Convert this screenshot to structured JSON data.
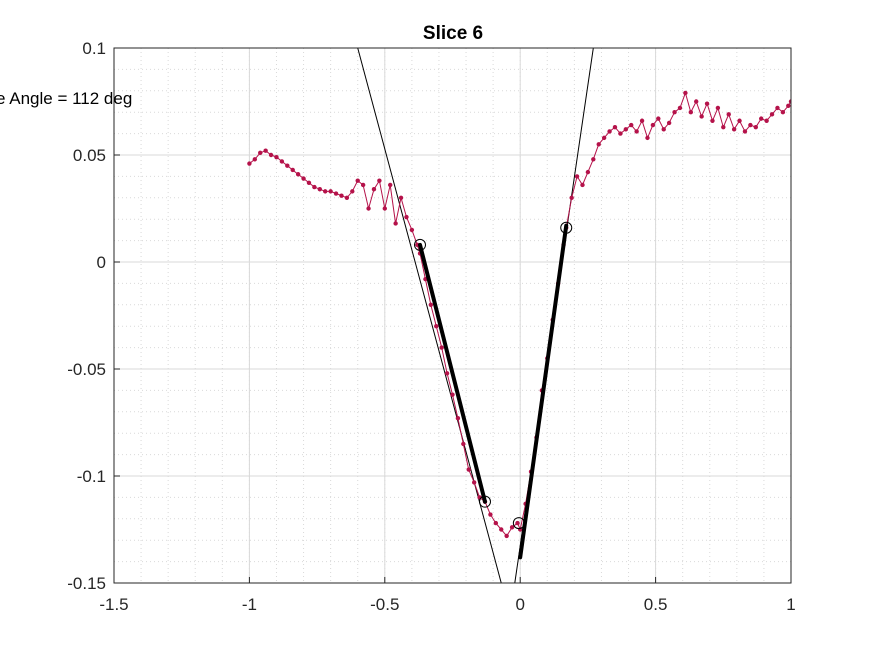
{
  "chart_data": {
    "type": "line",
    "title": "Slice 6",
    "xlabel": "",
    "ylabel": "",
    "xlim": [
      -1.5,
      1
    ],
    "ylim": [
      -0.15,
      0.1
    ],
    "xticks": [
      -1.5,
      -1,
      -0.5,
      0,
      0.5,
      1
    ],
    "xtick_labels": [
      "-1.5",
      "-1",
      "-0.5",
      "0",
      "0.5",
      "1"
    ],
    "yticks": [
      -0.15,
      -0.1,
      -0.05,
      0,
      0.05,
      0.1
    ],
    "ytick_labels": [
      "-0.15",
      "-0.1",
      "-0.05",
      "0",
      "0.05",
      "0.1"
    ],
    "grid": true,
    "minor_grid": true,
    "annotation": "e Angle = 112 deg",
    "colors": {
      "series": "#b5124a",
      "fit": "#000000",
      "grid": "#d9d9d9",
      "axes": "#262626"
    },
    "series": [
      {
        "x": [
          -1.0,
          -0.98,
          -0.96,
          -0.94,
          -0.92,
          -0.9,
          -0.88,
          -0.86,
          -0.84,
          -0.82,
          -0.8,
          -0.78,
          -0.76,
          -0.74,
          -0.72,
          -0.7,
          -0.68,
          -0.66,
          -0.64,
          -0.62,
          -0.6,
          -0.58,
          -0.56,
          -0.54,
          -0.52,
          -0.5,
          -0.48,
          -0.46,
          -0.44,
          -0.42,
          -0.4,
          -0.38,
          -0.37,
          -0.35,
          -0.33,
          -0.31,
          -0.29,
          -0.27,
          -0.25,
          -0.23,
          -0.21,
          -0.19,
          -0.17,
          -0.15,
          -0.13,
          -0.11,
          -0.09,
          -0.07,
          -0.05,
          -0.03,
          -0.01,
          0.0,
          0.02,
          0.04,
          0.06,
          0.08,
          0.1,
          0.12,
          0.14,
          0.16,
          0.17,
          0.19,
          0.21,
          0.23,
          0.25,
          0.27,
          0.29,
          0.31,
          0.33,
          0.35,
          0.37,
          0.39,
          0.41,
          0.43,
          0.45,
          0.47,
          0.49,
          0.51,
          0.53,
          0.55,
          0.57,
          0.59,
          0.61,
          0.63,
          0.65,
          0.67,
          0.69,
          0.71,
          0.73,
          0.75,
          0.77,
          0.79,
          0.81,
          0.83,
          0.85,
          0.87,
          0.89,
          0.91,
          0.93,
          0.95,
          0.97,
          0.99,
          1.0
        ],
        "y": [
          0.046,
          0.048,
          0.051,
          0.052,
          0.05,
          0.049,
          0.047,
          0.045,
          0.043,
          0.041,
          0.039,
          0.037,
          0.035,
          0.034,
          0.033,
          0.033,
          0.032,
          0.031,
          0.03,
          0.033,
          0.038,
          0.036,
          0.025,
          0.034,
          0.038,
          0.025,
          0.036,
          0.018,
          0.03,
          0.021,
          0.015,
          0.008,
          0.004,
          -0.008,
          -0.02,
          -0.03,
          -0.04,
          -0.052,
          -0.062,
          -0.073,
          -0.085,
          -0.097,
          -0.103,
          -0.11,
          -0.112,
          -0.118,
          -0.122,
          -0.125,
          -0.128,
          -0.124,
          -0.122,
          -0.125,
          -0.113,
          -0.098,
          -0.082,
          -0.06,
          -0.045,
          -0.027,
          -0.01,
          0.008,
          0.016,
          0.03,
          0.04,
          0.036,
          0.042,
          0.048,
          0.055,
          0.058,
          0.061,
          0.063,
          0.06,
          0.062,
          0.064,
          0.061,
          0.066,
          0.058,
          0.064,
          0.067,
          0.062,
          0.065,
          0.07,
          0.072,
          0.079,
          0.07,
          0.075,
          0.068,
          0.074,
          0.066,
          0.072,
          0.063,
          0.069,
          0.062,
          0.066,
          0.061,
          0.064,
          0.063,
          0.067,
          0.066,
          0.069,
          0.072,
          0.07,
          0.073,
          0.075
        ]
      }
    ],
    "fit_lines": [
      {
        "x": [
          -0.6,
          -0.07
        ],
        "y": [
          0.1,
          -0.15
        ]
      },
      {
        "x": [
          -0.02,
          0.27
        ],
        "y": [
          -0.15,
          0.1
        ]
      }
    ],
    "fit_segments": [
      {
        "x": [
          -0.37,
          -0.13
        ],
        "y": [
          0.008,
          -0.112
        ]
      },
      {
        "x": [
          0.0,
          0.17
        ],
        "y": [
          -0.138,
          0.017
        ]
      }
    ],
    "markers": [
      {
        "x": -0.37,
        "y": 0.008
      },
      {
        "x": -0.13,
        "y": -0.112
      },
      {
        "x": -0.005,
        "y": -0.122
      },
      {
        "x": 0.17,
        "y": 0.016
      }
    ]
  }
}
